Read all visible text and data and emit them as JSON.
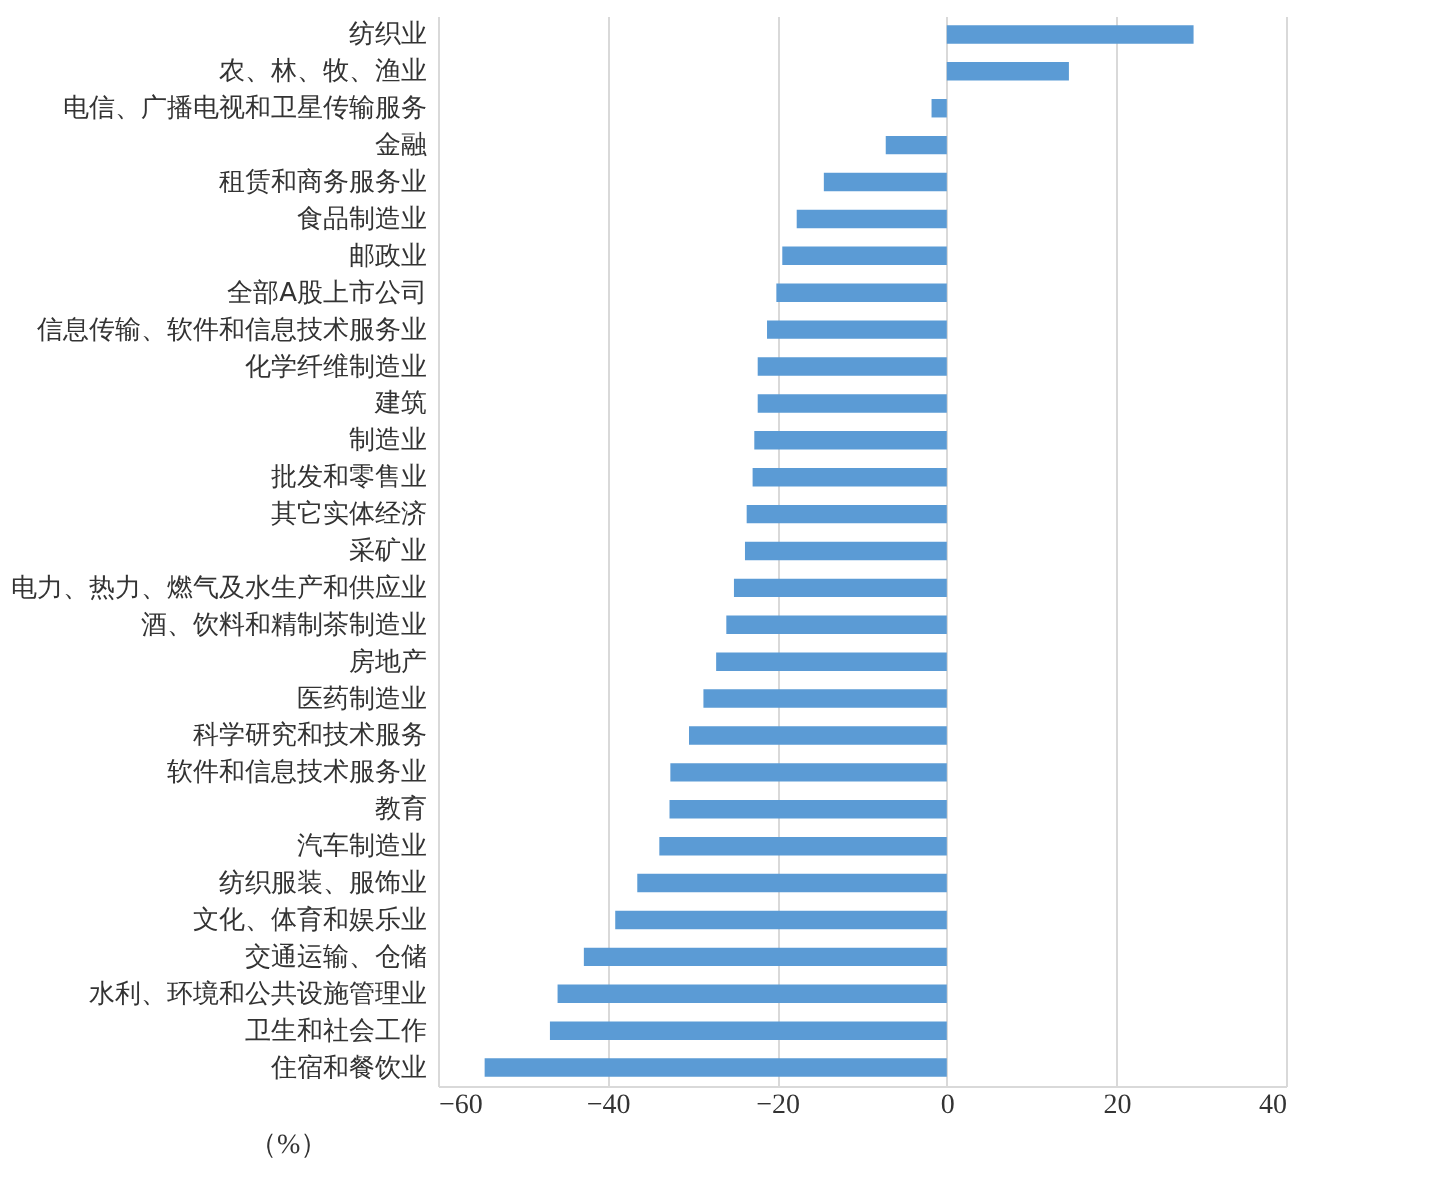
{
  "chart_data": {
    "type": "bar",
    "orientation": "horizontal",
    "xlabel": "（%）",
    "categories": [
      "纺织业",
      "农、林、牧、渔业",
      "电信、广播电视和卫星传输服务",
      "金融",
      "租赁和商务服务业",
      "食品制造业",
      "邮政业",
      "全部A股上市公司",
      "信息传输、软件和信息技术服务业",
      "化学纤维制造业",
      "建筑",
      "制造业",
      "批发和零售业",
      "其它实体经济",
      "采矿业",
      "电力、热力、燃气及水生产和供应业",
      "酒、饮料和精制茶制造业",
      "房地产",
      "医药制造业",
      "科学研究和技术服务",
      "软件和信息技术服务业",
      "教育",
      "汽车制造业",
      "纺织服装、服饰业",
      "文化、体育和娱乐业",
      "交通运输、仓储",
      "水利、环境和公共设施管理业",
      "卫生和社会工作",
      "住宿和餐饮业"
    ],
    "values": [
      29.1,
      14.4,
      -1.8,
      -7.2,
      -14.5,
      -17.7,
      -19.4,
      -20.1,
      -21.2,
      -22.3,
      -22.3,
      -22.7,
      -22.9,
      -23.6,
      -23.8,
      -25.1,
      -26.0,
      -27.2,
      -28.7,
      -30.4,
      -32.6,
      -32.7,
      -33.9,
      -36.5,
      -39.1,
      -42.8,
      -45.9,
      -46.8,
      -54.5
    ],
    "color": "#5b9bd5",
    "xlim": [
      -60,
      40
    ],
    "xticks": [
      -60,
      -40,
      -20,
      0,
      20,
      40
    ],
    "grid": "x"
  }
}
